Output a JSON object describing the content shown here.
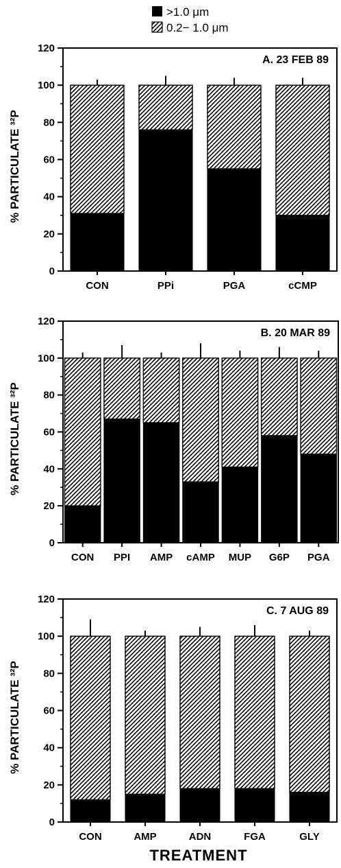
{
  "legend": [
    {
      "label": ">1.0 μm",
      "fill": "solid",
      "color": "#000000"
    },
    {
      "label": "0.2− 1.0 μm",
      "fill": "hatched",
      "color": "#000000"
    }
  ],
  "xlabel": "TREATMENT",
  "chart_data": [
    {
      "type": "bar",
      "stacked": true,
      "title": "A. 23 FEB 89",
      "ylabel": "% PARTICULATE ³²P",
      "ylim": [
        0,
        120
      ],
      "yticks": [
        "0",
        "20",
        "40",
        "60",
        "80",
        "100",
        "120"
      ],
      "categories": [
        "CON",
        "PPi",
        "PGA",
        "cCMP"
      ],
      "series": [
        {
          "name": ">1.0 μm",
          "values": [
            31,
            76,
            55,
            30
          ]
        },
        {
          "name": "0.2− 1.0 μm",
          "values": [
            69,
            24,
            45,
            70
          ]
        }
      ],
      "error_top": [
        103,
        105,
        104,
        104
      ]
    },
    {
      "type": "bar",
      "stacked": true,
      "title": "B. 20 MAR 89",
      "ylabel": "% PARTICULATE ³²P",
      "ylim": [
        0,
        120
      ],
      "yticks": [
        "0",
        "20",
        "40",
        "60",
        "80",
        "100",
        "120"
      ],
      "categories": [
        "CON",
        "PPI",
        "AMP",
        "cAMP",
        "MUP",
        "G6P",
        "PGA"
      ],
      "series": [
        {
          "name": ">1.0 μm",
          "values": [
            20,
            67,
            65,
            33,
            41,
            58,
            48
          ]
        },
        {
          "name": "0.2− 1.0 μm",
          "values": [
            80,
            33,
            35,
            67,
            59,
            42,
            52
          ]
        }
      ],
      "error_top": [
        103,
        107,
        103,
        108,
        104,
        106,
        104
      ]
    },
    {
      "type": "bar",
      "stacked": true,
      "title": "C. 7 AUG 89",
      "ylabel": "% PARTICULATE ³²P",
      "ylim": [
        0,
        120
      ],
      "yticks": [
        "0",
        "20",
        "40",
        "60",
        "80",
        "100",
        "120"
      ],
      "categories": [
        "CON",
        "AMP",
        "ADN",
        "FGA",
        "GLY"
      ],
      "series": [
        {
          "name": ">1.0 μm",
          "values": [
            12,
            15,
            18,
            18,
            16
          ]
        },
        {
          "name": "0.2− 1.0 μm",
          "values": [
            88,
            85,
            82,
            82,
            84
          ]
        }
      ],
      "error_top": [
        109,
        103,
        105,
        106,
        103
      ]
    }
  ]
}
